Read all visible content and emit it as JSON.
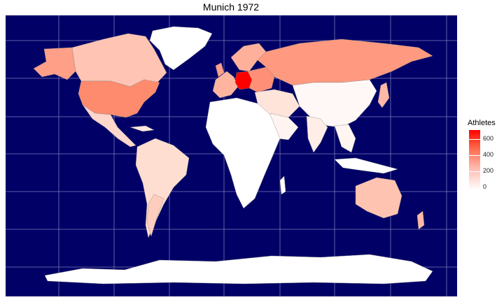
{
  "title": "Munich 1972",
  "legend": {
    "title": "Athletes",
    "ticks": [
      "600",
      "400",
      "200",
      "0"
    ],
    "scale_max": 700,
    "colors": {
      "low": "#ffffff",
      "high": "#ff0000"
    }
  },
  "map": {
    "ocean_color": "#000066",
    "grid_color": "#9999cc",
    "projection": "equirectangular",
    "highlighted_country": "West Germany",
    "country_values": [
      {
        "country": "West Germany",
        "athletes": 700
      },
      {
        "country": "Soviet Union",
        "athletes": 400
      },
      {
        "country": "United States",
        "athletes": 420
      },
      {
        "country": "Canada",
        "athletes": 220
      },
      {
        "country": "Australia",
        "athletes": 180
      },
      {
        "country": "Italy",
        "athletes": 250
      },
      {
        "country": "France",
        "athletes": 240
      },
      {
        "country": "Japan",
        "athletes": 200
      },
      {
        "country": "Poland",
        "athletes": 300
      },
      {
        "country": "Brazil",
        "athletes": 80
      },
      {
        "country": "Argentina",
        "athletes": 100
      }
    ]
  }
}
